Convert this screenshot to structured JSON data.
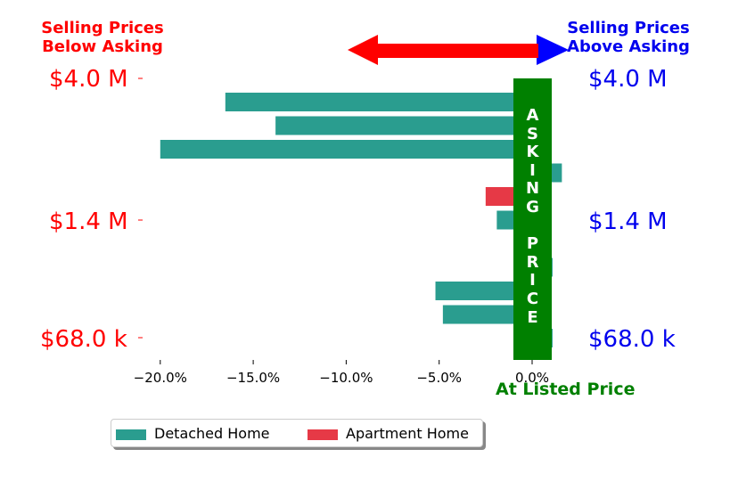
{
  "headers": {
    "left": "Selling Prices\nBelow Asking",
    "right": "Selling Prices\nAbove Asking"
  },
  "colors": {
    "left_text": "#ff0000",
    "right_text": "#0000ee",
    "arrow_left": "#ff0000",
    "arrow_right": "#0000ff",
    "asking_band": "#008000",
    "bottom_label": "#008000"
  },
  "price_labels": {
    "left": [
      "$4.0 M",
      "$1.4 M",
      "$68.0 k"
    ],
    "right": [
      "$4.0 M",
      "$1.4 M",
      "$68.0 k"
    ]
  },
  "asking_band_letters": [
    "A",
    "S",
    "K",
    "I",
    "N",
    "G",
    "",
    "P",
    "R",
    "I",
    "C",
    "E"
  ],
  "bottom_label": "At Listed Price",
  "chart_data": {
    "type": "bar",
    "orientation": "horizontal",
    "xlabel": "",
    "ylabel": "",
    "xlim": [
      -22,
      2
    ],
    "x_ticks": [
      -20,
      -15,
      -10,
      -5,
      0
    ],
    "x_tick_labels": [
      "−20.0%",
      "−15.0%",
      "−10.0%",
      "−5.0%",
      "0.0%"
    ],
    "y_tick_labels": [
      "$4.0 M",
      "$1.4 M",
      "$68.0 k"
    ],
    "grid": false,
    "legend_position": "bottom-left",
    "series": [
      {
        "name": "Detached Home",
        "color": "#2a9d8f",
        "values": [
          -16.5,
          -13.8,
          -20.0,
          1.6,
          null,
          -1.9,
          null,
          1.1,
          -5.2,
          -4.8,
          1.1
        ]
      },
      {
        "name": "Apartment Home",
        "color": "#e63946",
        "values": [
          null,
          null,
          null,
          null,
          -2.5,
          null,
          null,
          null,
          null,
          null,
          null
        ]
      }
    ]
  }
}
